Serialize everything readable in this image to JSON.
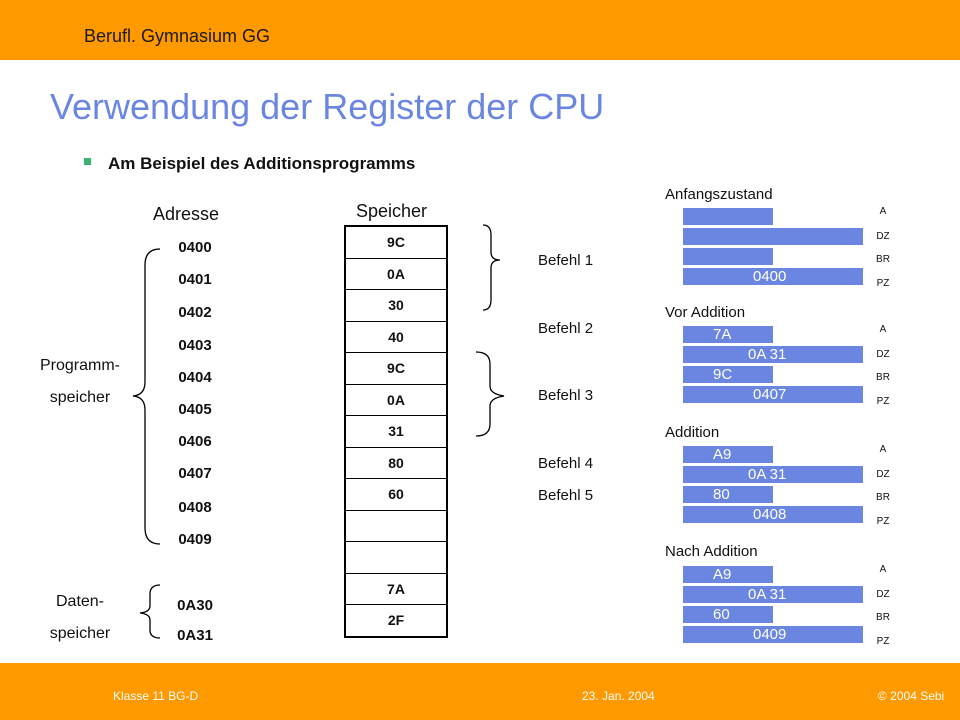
{
  "header": {
    "school": "Berufl. Gymnasium GG"
  },
  "title": "Verwendung der Register der CPU",
  "bullet": "Am Beispiel des Additionsprogramms",
  "columns": {
    "address": "Adresse",
    "memory": "Speicher"
  },
  "addresses": [
    "0400",
    "0401",
    "0402",
    "0403",
    "0404",
    "0405",
    "0406",
    "0407",
    "0408",
    "0409"
  ],
  "data_addresses": [
    "0A30",
    "0A31"
  ],
  "memory": [
    "9C",
    "0A",
    "30",
    "40",
    "9C",
    "0A",
    "31",
    "80",
    "60",
    "",
    "",
    "7A",
    "2F"
  ],
  "labels": {
    "program_1": "Programm-",
    "program_2": "speicher",
    "data_1": "Daten-",
    "data_2": "speicher"
  },
  "befehle": [
    "Befehl 1",
    "Befehl 2",
    "Befehl 3",
    "Befehl 4",
    "Befehl 5"
  ],
  "register_names": [
    "A",
    "DZ",
    "BR",
    "PZ"
  ],
  "states": [
    {
      "title": "Anfangszustand",
      "A": "",
      "DZ": "",
      "BR": "",
      "PZ": "0400"
    },
    {
      "title": "Vor Addition",
      "A": "7A",
      "DZ": "0A 31",
      "BR": "9C",
      "PZ": "0407"
    },
    {
      "title": "Addition",
      "A": "A9",
      "DZ": "0A 31",
      "BR": "80",
      "PZ": "0408"
    },
    {
      "title": "Nach Addition",
      "A": "A9",
      "DZ": "0A 31",
      "BR": "60",
      "PZ": "0409"
    }
  ],
  "footer": {
    "left": "Klasse 11 BG-D",
    "center": "23. Jan. 2004",
    "right": "© 2004 Sebi"
  },
  "colors": {
    "accent": "#ff9900",
    "register": "#6b86e0",
    "title": "#6b86e0"
  }
}
